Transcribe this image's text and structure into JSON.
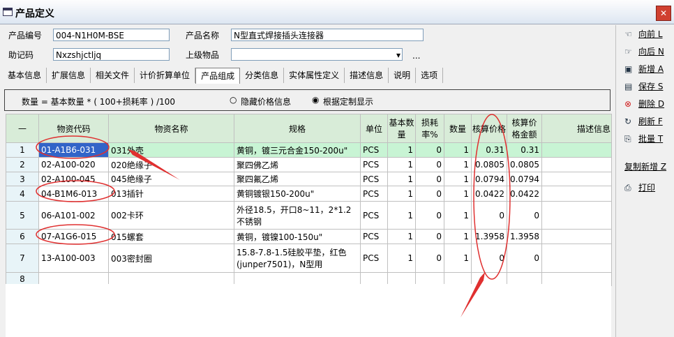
{
  "window": {
    "title": "产品定义"
  },
  "form": {
    "product_code_label": "产品编号",
    "product_code": "004-N1H0M-BSE",
    "product_name_label": "产品名称",
    "product_name": "N型直式焊接插头连接器",
    "mnemonic_label": "助记码",
    "mnemonic": "Nxzshjctljq",
    "parent_label": "上级物品",
    "browse": "..."
  },
  "tabs": [
    "基本信息",
    "扩展信息",
    "相关文件",
    "计价折算单位",
    "产品组成",
    "分类信息",
    "实体属性定义",
    "描述信息",
    "说明",
    "选项"
  ],
  "formula": {
    "text": "数量 = 基本数量 * ( 100+损耗率 ) /100",
    "options": [
      "隐藏价格信息",
      "根据定制显示"
    ]
  },
  "table": {
    "headers": [
      "—",
      "物资代码",
      "物资名称",
      "规格",
      "单位",
      "基本数量",
      "损耗率%",
      "数量",
      "核算价格",
      "核算价格金额",
      "描述信息"
    ],
    "rows": [
      [
        "1",
        "01-A1B6-031",
        "031外壳",
        "黄铜，镀三元合金150-200u\"",
        "PCS",
        1,
        0,
        1,
        0.31,
        0.31
      ],
      [
        "2",
        "02-A100-020",
        "020绝缘子",
        "聚四佛乙烯",
        "PCS",
        1,
        0,
        1,
        0.0805,
        0.0805
      ],
      [
        "3",
        "02-A100-045",
        "045绝缘子",
        "聚四氟乙烯",
        "PCS",
        1,
        0,
        1,
        0.0794,
        0.0794
      ],
      [
        "4",
        "04-B1M6-013",
        "013插针",
        "黄铜镀银150-200u\"",
        "PCS",
        1,
        0,
        1,
        0.0422,
        0.0422
      ],
      [
        "5",
        "06-A101-002",
        "002卡环",
        "外径18.5，开口8~11，2*1.2不锈钢",
        "PCS",
        1,
        0,
        1,
        0,
        0
      ],
      [
        "6",
        "07-A1G6-015",
        "015螺套",
        "黄铜，镀镍100-150u\"",
        "PCS",
        1,
        0,
        1,
        1.3958,
        1.3958
      ],
      [
        "7",
        "13-A100-003",
        "003密封圈",
        "15.8-7.8-1.5硅胶平垫，红色(junper7501)，N型用",
        "PCS",
        1,
        0,
        1,
        0,
        0
      ],
      [
        "8"
      ]
    ]
  },
  "sidebar": [
    "向前 L",
    "向后 N",
    "新增 A",
    "保存 S",
    "删除 D",
    "刷新 F",
    "批量 T",
    "复制新增 Z",
    "打印"
  ]
}
